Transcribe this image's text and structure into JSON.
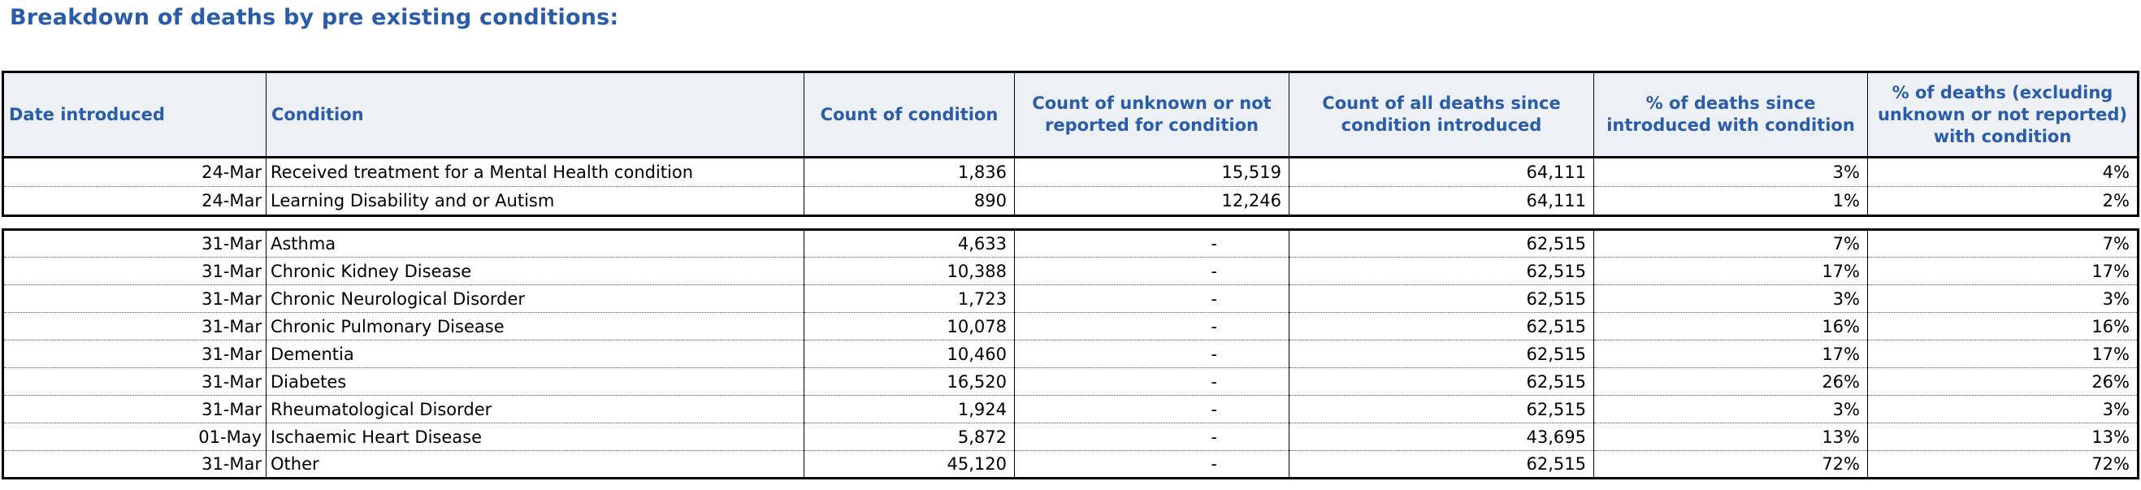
{
  "title": "Breakdown of deaths by pre existing conditions:",
  "colors": {
    "accent_blue": "#2A5CA8",
    "header_background": "#EDF1F6",
    "border_black": "#000000",
    "page_background": "#FFFFFF"
  },
  "table": {
    "columns": [
      {
        "label": "Date introduced"
      },
      {
        "label": "Condition"
      },
      {
        "label": "Count of condition"
      },
      {
        "label": "Count of unknown or not reported for condition"
      },
      {
        "label": "Count of all deaths since condition introduced"
      },
      {
        "label": "% of deaths since introduced with condition"
      },
      {
        "label": "% of deaths (excluding unknown or not reported) with condition"
      }
    ],
    "section1": [
      {
        "date": "24-Mar",
        "condition": "Received treatment for a Mental Health condition",
        "count": "1,836",
        "unknown": "15,519",
        "all_deaths": "64,111",
        "pct": "3%",
        "pct_excl": "4%"
      },
      {
        "date": "24-Mar",
        "condition": "Learning Disability and or Autism",
        "count": "890",
        "unknown": "12,246",
        "all_deaths": "64,111",
        "pct": "1%",
        "pct_excl": "2%"
      }
    ],
    "section2": [
      {
        "date": "31-Mar",
        "condition": "Asthma",
        "count": "4,633",
        "unknown": "-",
        "all_deaths": "62,515",
        "pct": "7%",
        "pct_excl": "7%"
      },
      {
        "date": "31-Mar",
        "condition": "Chronic Kidney Disease",
        "count": "10,388",
        "unknown": "-",
        "all_deaths": "62,515",
        "pct": "17%",
        "pct_excl": "17%"
      },
      {
        "date": "31-Mar",
        "condition": "Chronic Neurological Disorder",
        "count": "1,723",
        "unknown": "-",
        "all_deaths": "62,515",
        "pct": "3%",
        "pct_excl": "3%"
      },
      {
        "date": "31-Mar",
        "condition": "Chronic Pulmonary Disease",
        "count": "10,078",
        "unknown": "-",
        "all_deaths": "62,515",
        "pct": "16%",
        "pct_excl": "16%"
      },
      {
        "date": "31-Mar",
        "condition": "Dementia",
        "count": "10,460",
        "unknown": "-",
        "all_deaths": "62,515",
        "pct": "17%",
        "pct_excl": "17%"
      },
      {
        "date": "31-Mar",
        "condition": "Diabetes",
        "count": "16,520",
        "unknown": "-",
        "all_deaths": "62,515",
        "pct": "26%",
        "pct_excl": "26%"
      },
      {
        "date": "31-Mar",
        "condition": "Rheumatological Disorder",
        "count": "1,924",
        "unknown": "-",
        "all_deaths": "62,515",
        "pct": "3%",
        "pct_excl": "3%"
      },
      {
        "date": "01-May",
        "condition": "Ischaemic Heart Disease",
        "count": "5,872",
        "unknown": "-",
        "all_deaths": "43,695",
        "pct": "13%",
        "pct_excl": "13%"
      },
      {
        "date": "31-Mar",
        "condition": "Other",
        "count": "45,120",
        "unknown": "-",
        "all_deaths": "62,515",
        "pct": "72%",
        "pct_excl": "72%"
      }
    ]
  }
}
